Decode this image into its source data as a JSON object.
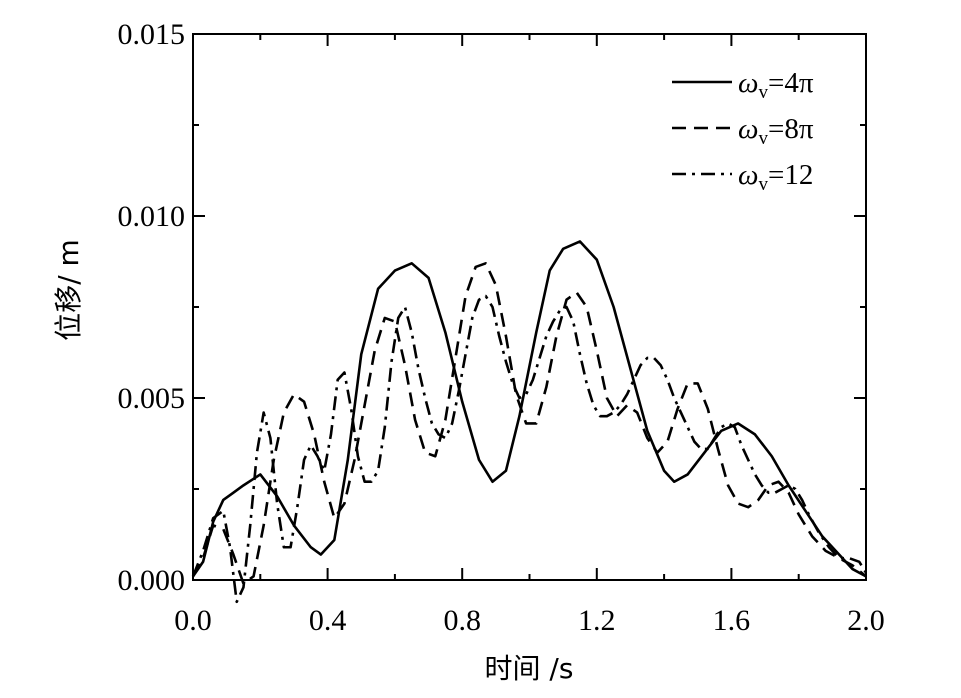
{
  "chart_data": {
    "type": "line",
    "xlabel": "时间 /s",
    "ylabel": "位移/ m",
    "xlim": [
      0.0,
      2.0
    ],
    "ylim": [
      0.0,
      0.015
    ],
    "x_ticks": [
      "0.0",
      "0.4",
      "0.8",
      "1.2",
      "1.6",
      "2.0"
    ],
    "y_ticks": [
      "0.000",
      "0.005",
      "0.010",
      "0.015"
    ],
    "legend_position": "top-right",
    "grid": false,
    "series": [
      {
        "name": "ωv=4π",
        "legend_symbol": "ω",
        "legend_sub": "v",
        "legend_rest": "=4π",
        "dash": "solid",
        "color": "#000000",
        "x": [
          0.0,
          0.03,
          0.06,
          0.09,
          0.12,
          0.15,
          0.2,
          0.25,
          0.3,
          0.35,
          0.38,
          0.42,
          0.46,
          0.5,
          0.55,
          0.6,
          0.65,
          0.7,
          0.75,
          0.8,
          0.85,
          0.89,
          0.93,
          0.97,
          1.02,
          1.06,
          1.1,
          1.15,
          1.2,
          1.25,
          1.3,
          1.35,
          1.4,
          1.43,
          1.47,
          1.52,
          1.57,
          1.62,
          1.67,
          1.72,
          1.77,
          1.82,
          1.87,
          1.92,
          1.96,
          2.0
        ],
        "y": [
          0.0001,
          0.0005,
          0.0016,
          0.0022,
          0.0024,
          0.0026,
          0.0029,
          0.0023,
          0.0015,
          0.0009,
          0.0007,
          0.0011,
          0.0033,
          0.0062,
          0.008,
          0.0085,
          0.0087,
          0.0083,
          0.0068,
          0.0049,
          0.0033,
          0.0027,
          0.003,
          0.0045,
          0.0068,
          0.0085,
          0.0091,
          0.0093,
          0.0088,
          0.0075,
          0.0058,
          0.0041,
          0.003,
          0.0027,
          0.0029,
          0.0035,
          0.0041,
          0.0043,
          0.004,
          0.0034,
          0.0026,
          0.0019,
          0.0012,
          0.0007,
          0.0003,
          0.0001
        ]
      },
      {
        "name": "ωv=8π",
        "legend_symbol": "ω",
        "legend_sub": "v",
        "legend_rest": "=8π",
        "dash": "dashed",
        "color": "#000000",
        "x": [
          0.0,
          0.03,
          0.06,
          0.09,
          0.12,
          0.15,
          0.18,
          0.21,
          0.24,
          0.27,
          0.3,
          0.33,
          0.36,
          0.39,
          0.42,
          0.45,
          0.48,
          0.51,
          0.54,
          0.57,
          0.6,
          0.63,
          0.66,
          0.69,
          0.72,
          0.75,
          0.78,
          0.81,
          0.84,
          0.87,
          0.9,
          0.93,
          0.96,
          0.99,
          1.02,
          1.05,
          1.08,
          1.11,
          1.14,
          1.17,
          1.2,
          1.23,
          1.26,
          1.29,
          1.32,
          1.35,
          1.38,
          1.41,
          1.44,
          1.47,
          1.5,
          1.53,
          1.56,
          1.59,
          1.62,
          1.65,
          1.68,
          1.71,
          1.74,
          1.77,
          1.8,
          1.84,
          1.88,
          1.92,
          1.96,
          2.0
        ],
        "y": [
          0.0001,
          0.0006,
          0.0015,
          0.0014,
          0.0007,
          -0.0001,
          0.0001,
          0.0015,
          0.0033,
          0.0046,
          0.0051,
          0.0049,
          0.004,
          0.0027,
          0.0017,
          0.0021,
          0.0033,
          0.0048,
          0.0063,
          0.0072,
          0.0071,
          0.0059,
          0.0044,
          0.0035,
          0.0034,
          0.0044,
          0.0061,
          0.0078,
          0.0086,
          0.0087,
          0.0081,
          0.0067,
          0.0051,
          0.0043,
          0.0043,
          0.0053,
          0.0067,
          0.0077,
          0.0079,
          0.0075,
          0.0063,
          0.005,
          0.0045,
          0.0048,
          0.0046,
          0.0039,
          0.0035,
          0.0038,
          0.0047,
          0.0054,
          0.0054,
          0.0047,
          0.0036,
          0.0026,
          0.0021,
          0.002,
          0.0022,
          0.0026,
          0.0027,
          0.0024,
          0.0018,
          0.0012,
          0.0008,
          0.0006,
          0.0004,
          0.0001
        ]
      },
      {
        "name": "ωv=12",
        "legend_symbol": "ω",
        "legend_sub": "v",
        "legend_rest": "=12",
        "dash": "dashdot",
        "color": "#000000",
        "x": [
          0.0,
          0.03,
          0.06,
          0.09,
          0.11,
          0.13,
          0.15,
          0.17,
          0.19,
          0.21,
          0.23,
          0.25,
          0.27,
          0.29,
          0.31,
          0.33,
          0.35,
          0.37,
          0.39,
          0.41,
          0.43,
          0.45,
          0.47,
          0.49,
          0.51,
          0.53,
          0.55,
          0.57,
          0.59,
          0.61,
          0.63,
          0.65,
          0.67,
          0.69,
          0.71,
          0.73,
          0.75,
          0.77,
          0.79,
          0.81,
          0.83,
          0.85,
          0.87,
          0.89,
          0.91,
          0.93,
          0.95,
          0.97,
          0.99,
          1.01,
          1.03,
          1.05,
          1.07,
          1.09,
          1.11,
          1.13,
          1.15,
          1.17,
          1.19,
          1.21,
          1.23,
          1.25,
          1.27,
          1.29,
          1.31,
          1.33,
          1.35,
          1.37,
          1.39,
          1.41,
          1.43,
          1.45,
          1.47,
          1.49,
          1.51,
          1.53,
          1.55,
          1.57,
          1.59,
          1.61,
          1.63,
          1.65,
          1.67,
          1.69,
          1.71,
          1.73,
          1.75,
          1.77,
          1.79,
          1.81,
          1.83,
          1.86,
          1.89,
          1.92,
          1.95,
          1.98,
          2.0
        ],
        "y": [
          0.0001,
          0.0008,
          0.0017,
          0.0019,
          0.0009,
          -0.0006,
          -0.0002,
          0.0015,
          0.0035,
          0.0046,
          0.0039,
          0.0021,
          0.0009,
          0.0009,
          0.002,
          0.0033,
          0.0037,
          0.0034,
          0.003,
          0.004,
          0.0055,
          0.0057,
          0.0047,
          0.0034,
          0.0027,
          0.0027,
          0.003,
          0.0042,
          0.006,
          0.0072,
          0.0075,
          0.0068,
          0.0058,
          0.005,
          0.0043,
          0.004,
          0.0039,
          0.0043,
          0.0052,
          0.0062,
          0.0072,
          0.0077,
          0.0078,
          0.0075,
          0.0067,
          0.006,
          0.0054,
          0.005,
          0.0051,
          0.0055,
          0.0061,
          0.0067,
          0.0071,
          0.0074,
          0.0075,
          0.0071,
          0.0062,
          0.0054,
          0.0048,
          0.0045,
          0.0045,
          0.0046,
          0.0048,
          0.0051,
          0.0055,
          0.0059,
          0.0061,
          0.0061,
          0.0059,
          0.0055,
          0.005,
          0.0046,
          0.0042,
          0.0038,
          0.0036,
          0.0036,
          0.0039,
          0.0042,
          0.0043,
          0.0042,
          0.0037,
          0.0033,
          0.0029,
          0.0026,
          0.0024,
          0.0024,
          0.0025,
          0.0026,
          0.0025,
          0.0022,
          0.0018,
          0.0013,
          0.0009,
          0.0006,
          0.0006,
          0.0005,
          0.0002
        ]
      }
    ]
  }
}
